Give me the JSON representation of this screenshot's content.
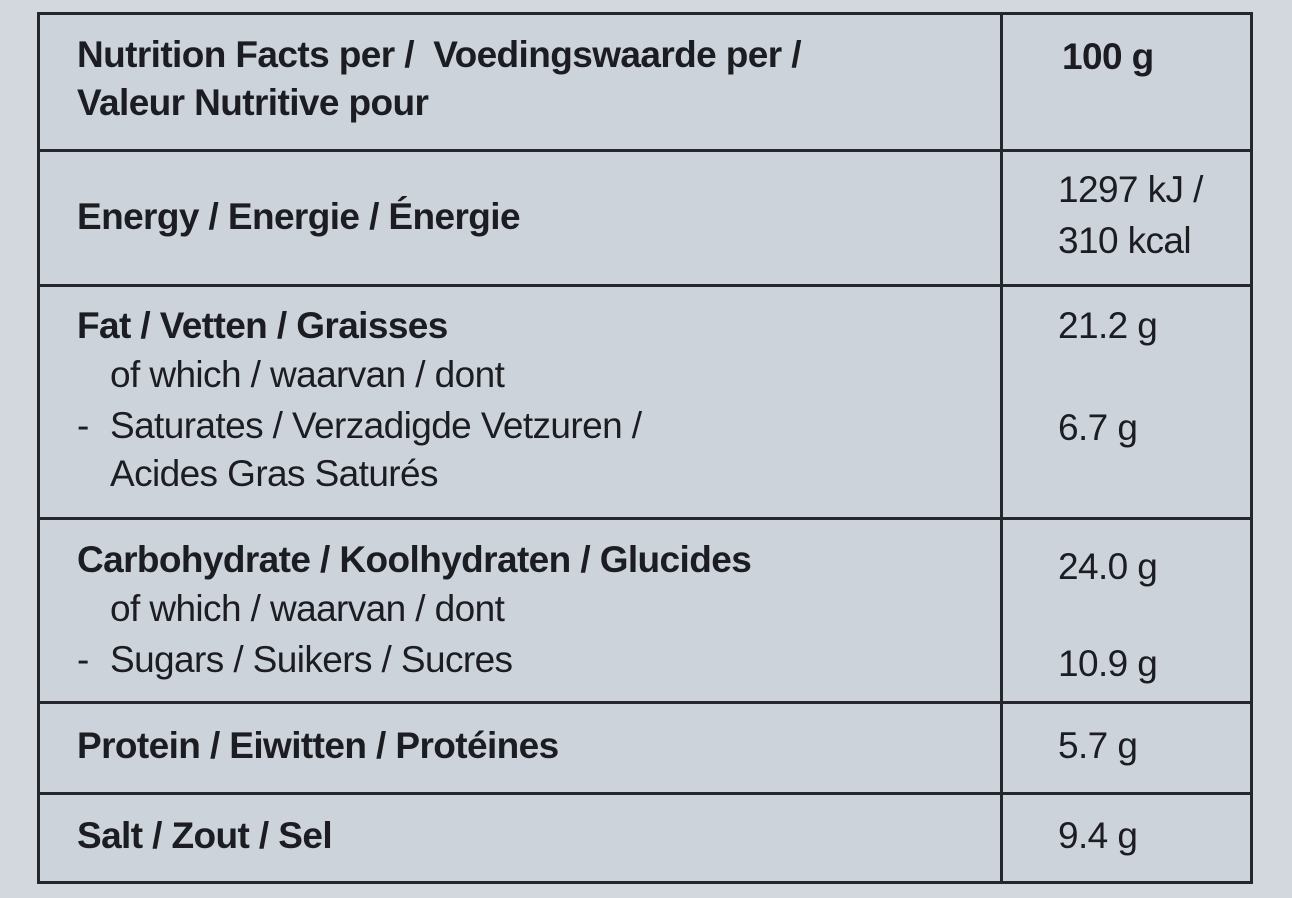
{
  "table": {
    "header": {
      "label": [
        "Nutrition Facts per /  Voedingswaarde per /",
        "Valeur Nutritive pour"
      ],
      "value": "100 g"
    },
    "rows": [
      {
        "label": "Energy / Energie / Énergie",
        "value": [
          "1297 kJ /",
          "310 kcal"
        ]
      },
      {
        "label": "Fat / Vetten / Graisses",
        "value": "21.2 g",
        "sub_label": "of which / waarvan / dont",
        "sub_marker": "-",
        "sub_item": [
          "Saturates / Verzadigde Vetzuren /",
          "Acides Gras Saturés"
        ],
        "sub_value": "6.7 g"
      },
      {
        "label": "Carbohydrate / Koolhydraten / Glucides",
        "value": "24.0 g",
        "sub_label": "of which / waarvan / dont",
        "sub_marker": "-",
        "sub_item": [
          "Sugars / Suikers / Sucres"
        ],
        "sub_value": "10.9 g"
      },
      {
        "label": "Protein / Eiwitten / Protéines",
        "value": "5.7 g"
      },
      {
        "label": "Salt / Zout / Sel",
        "value": "9.4 g"
      }
    ]
  }
}
